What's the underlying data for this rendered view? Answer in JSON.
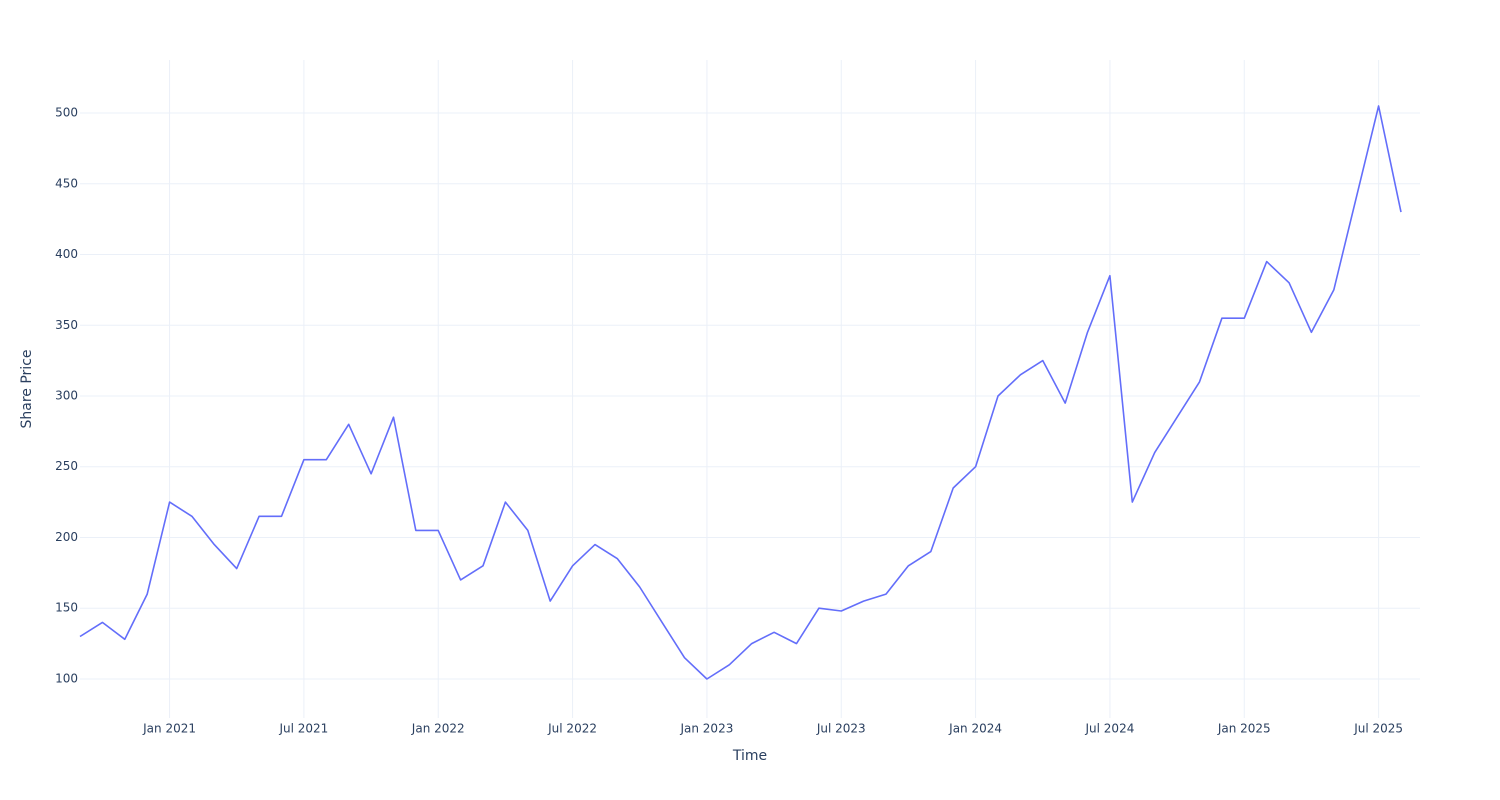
{
  "chart_data": {
    "type": "line",
    "x_label": "Time",
    "y_label": "Share Price",
    "x": [
      "2020-09",
      "2020-10",
      "2020-11",
      "2020-12",
      "2021-01",
      "2021-02",
      "2021-03",
      "2021-04",
      "2021-05",
      "2021-06",
      "2021-07",
      "2021-08",
      "2021-09",
      "2021-10",
      "2021-11",
      "2021-12",
      "2022-01",
      "2022-02",
      "2022-03",
      "2022-04",
      "2022-05",
      "2022-06",
      "2022-07",
      "2022-08",
      "2022-09",
      "2022-10",
      "2022-11",
      "2022-12",
      "2023-01",
      "2023-02",
      "2023-03",
      "2023-04",
      "2023-05",
      "2023-06",
      "2023-07",
      "2023-08",
      "2023-09",
      "2023-10",
      "2023-11",
      "2023-12",
      "2024-01",
      "2024-02",
      "2024-03",
      "2024-04",
      "2024-05",
      "2024-06",
      "2024-07",
      "2024-08",
      "2024-09",
      "2024-10",
      "2024-11",
      "2024-12",
      "2025-01",
      "2025-02",
      "2025-03",
      "2025-04",
      "2025-05",
      "2025-06",
      "2025-07",
      "2025-08"
    ],
    "series": [
      {
        "color": "#636efa",
        "values": [
          130,
          140,
          128,
          160,
          225,
          215,
          195,
          178,
          215,
          215,
          255,
          255,
          280,
          245,
          285,
          205,
          205,
          170,
          180,
          225,
          205,
          155,
          180,
          195,
          185,
          165,
          140,
          115,
          100,
          110,
          125,
          133,
          125,
          150,
          148,
          155,
          160,
          180,
          190,
          235,
          250,
          300,
          315,
          325,
          295,
          345,
          385,
          225,
          260,
          285,
          310,
          355,
          355,
          395,
          380,
          345,
          375,
          440,
          505,
          430
        ]
      }
    ],
    "xlim": [
      "2020-09",
      "2025-08"
    ],
    "xticks": [
      {
        "value": "2021-01",
        "label": "Jan 2021"
      },
      {
        "value": "2021-07",
        "label": "Jul 2021"
      },
      {
        "value": "2022-01",
        "label": "Jan 2022"
      },
      {
        "value": "2022-07",
        "label": "Jul 2022"
      },
      {
        "value": "2023-01",
        "label": "Jan 2023"
      },
      {
        "value": "2023-07",
        "label": "Jul 2023"
      },
      {
        "value": "2024-01",
        "label": "Jan 2024"
      },
      {
        "value": "2024-07",
        "label": "Jul 2024"
      },
      {
        "value": "2025-01",
        "label": "Jan 2025"
      },
      {
        "value": "2025-07",
        "label": "Jul 2025"
      }
    ],
    "ylim": [
      72.4,
      537.5
    ],
    "yticks": [
      100,
      150,
      200,
      250,
      300,
      350,
      400,
      450,
      500
    ],
    "grid": true
  }
}
